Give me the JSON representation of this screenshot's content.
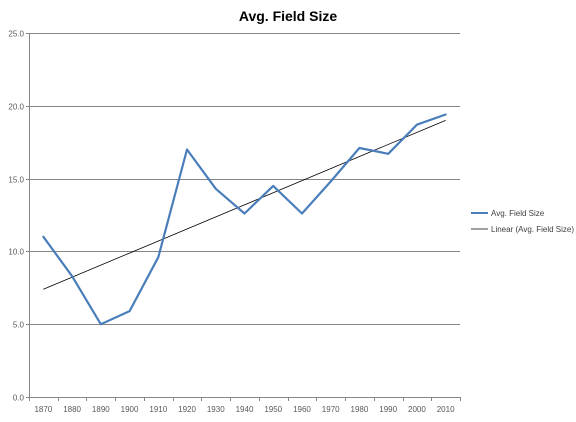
{
  "chart_data": {
    "type": "line",
    "title": "Avg. Field Size",
    "xlabel": "",
    "ylabel": "",
    "categories": [
      "1870",
      "1880",
      "1890",
      "1900",
      "1910",
      "1920",
      "1930",
      "1940",
      "1950",
      "1960",
      "1970",
      "1980",
      "1990",
      "2000",
      "2010"
    ],
    "series": [
      {
        "name": "Avg. Field Size",
        "values": [
          11.0,
          8.3,
          5.0,
          5.9,
          9.6,
          17.0,
          14.3,
          12.6,
          14.5,
          12.6,
          14.8,
          17.1,
          16.7,
          18.7,
          19.4
        ],
        "color": "#4a7ebb"
      }
    ],
    "trendline": {
      "name": "Linear (Avg. Field Size)",
      "start": 7.4,
      "end": 19.0,
      "color": "#000000"
    },
    "ylim": [
      0,
      25
    ],
    "yticks": [
      "0.0",
      "5.0",
      "10.0",
      "15.0",
      "20.0",
      "25.0"
    ],
    "grid": true,
    "legend_position": "right"
  }
}
